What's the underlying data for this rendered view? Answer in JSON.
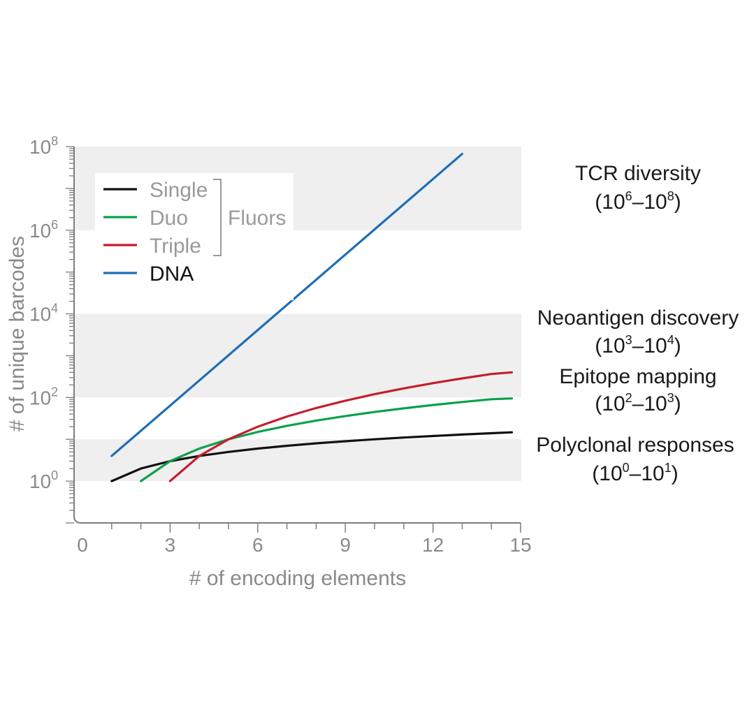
{
  "chart_data": {
    "type": "line",
    "xlabel": "# of encoding elements",
    "ylabel": "# of unique barcodes",
    "xlim": [
      0,
      15
    ],
    "ylim_log10": [
      -1,
      8
    ],
    "y_scale": "log",
    "x_ticks": [
      0,
      3,
      6,
      9,
      12,
      15
    ],
    "y_ticks": [
      {
        "base": "10",
        "exp": "0"
      },
      {
        "base": "10",
        "exp": "2"
      },
      {
        "base": "10",
        "exp": "4"
      },
      {
        "base": "10",
        "exp": "6"
      },
      {
        "base": "10",
        "exp": "8"
      }
    ],
    "grid": false,
    "legend_position": "top-left",
    "legend_group_label": "Fluors",
    "series": [
      {
        "name": "Single",
        "color": "#111111",
        "group": "fluor",
        "x": [
          1,
          2,
          3,
          4,
          5,
          6,
          7,
          8,
          9,
          10,
          11,
          12,
          13,
          14,
          14.7
        ],
        "y": [
          1,
          2,
          3,
          4,
          5,
          6,
          7,
          8,
          9,
          10,
          11,
          12,
          13,
          14,
          14.7
        ]
      },
      {
        "name": "Duo",
        "color": "#0aa14b",
        "group": "fluor",
        "x": [
          2,
          3,
          4,
          5,
          6,
          7,
          8,
          9,
          10,
          11,
          12,
          13,
          14,
          14.7
        ],
        "y": [
          1,
          3,
          6,
          10,
          15,
          21,
          28,
          36,
          45,
          55,
          66,
          78,
          91,
          95
        ]
      },
      {
        "name": "Triple",
        "color": "#c41e2d",
        "group": "fluor",
        "x": [
          3,
          4,
          5,
          6,
          7,
          8,
          9,
          10,
          11,
          12,
          13,
          14,
          14.7
        ],
        "y": [
          1,
          4,
          10,
          20,
          35,
          56,
          84,
          120,
          165,
          220,
          286,
          364,
          400
        ]
      },
      {
        "name": "DNA",
        "color": "#1f6eb5",
        "group": "dna",
        "x": [
          1,
          13
        ],
        "y": [
          4,
          67108864
        ]
      }
    ],
    "regions": [
      {
        "label": "TCR diversity",
        "range_base": "10",
        "range_lo": "6",
        "range_hi": "8",
        "log_lo": 6,
        "log_hi": 8
      },
      {
        "label": "Neoantigen discovery",
        "range_base": "10",
        "range_lo": "3",
        "range_hi": "4",
        "log_lo": 3,
        "log_hi": 4
      },
      {
        "label": "Epitope mapping",
        "range_base": "10",
        "range_lo": "2",
        "range_hi": "3",
        "log_lo": 2,
        "log_hi": 3
      },
      {
        "label": "Polyclonal responses",
        "range_base": "10",
        "range_lo": "0",
        "range_hi": "1",
        "log_lo": 0,
        "log_hi": 1
      }
    ]
  }
}
